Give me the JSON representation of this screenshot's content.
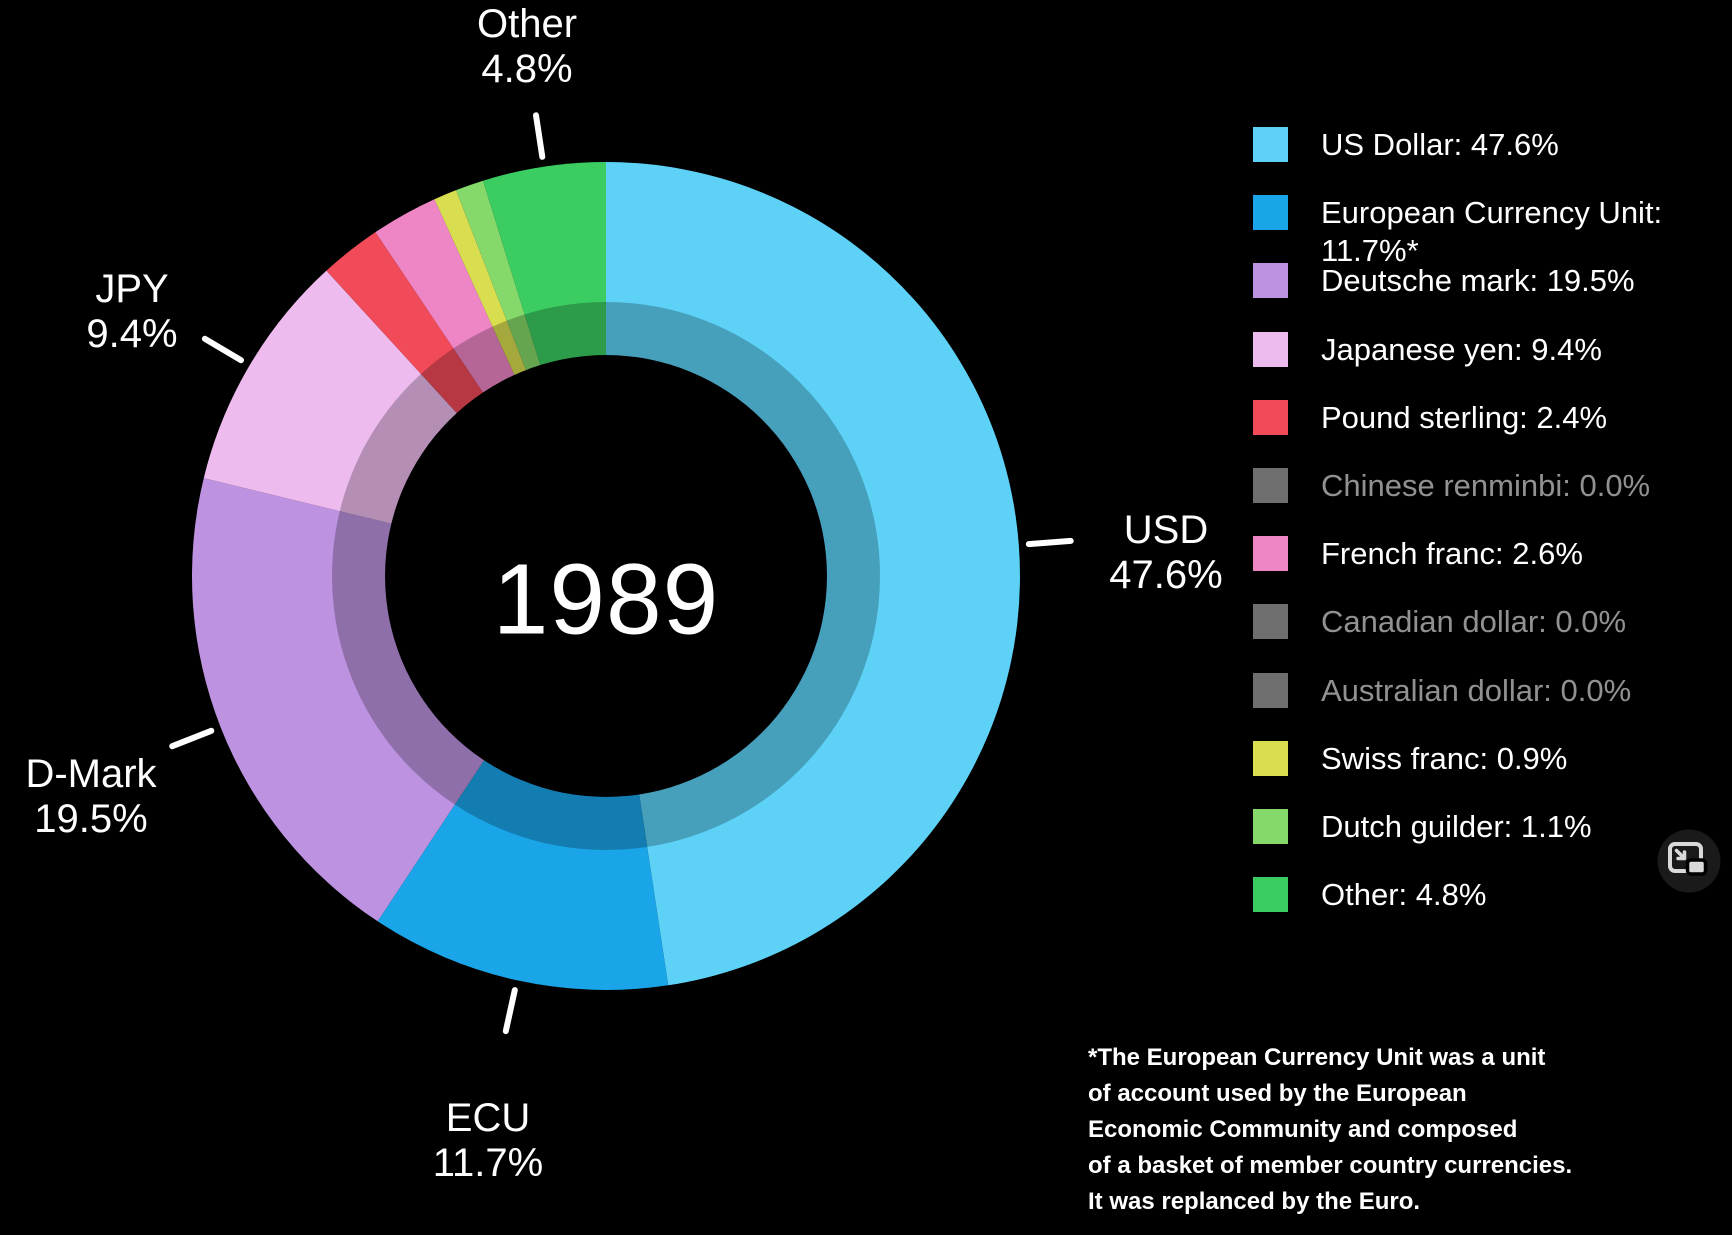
{
  "chart_data": {
    "type": "pie",
    "title": "Currency composition 1989",
    "center_label": "1989",
    "donut": true,
    "start_angle_deg": 0,
    "direction": "clockwise",
    "legend_position": "right",
    "segments": [
      {
        "name": "US Dollar",
        "value": 47.6,
        "color": "#5dd2f6",
        "dimmed": false,
        "legend_lines": [
          "US Dollar: 47.6%"
        ],
        "callout": {
          "label": "USD",
          "pct": "47.6%"
        }
      },
      {
        "name": "European Currency Unit",
        "value": 11.7,
        "color": "#1aa5e9",
        "dimmed": false,
        "legend_lines": [
          "European Currency Unit:",
          "11.7%*"
        ],
        "callout": {
          "label": "ECU",
          "pct": "11.7%"
        }
      },
      {
        "name": "Deutsche mark",
        "value": 19.5,
        "color": "#bd92e0",
        "dimmed": false,
        "legend_lines": [
          "Deutsche mark: 19.5%"
        ],
        "callout": {
          "label": "D-Mark",
          "pct": "19.5%"
        }
      },
      {
        "name": "Japanese yen",
        "value": 9.4,
        "color": "#edbbee",
        "dimmed": false,
        "legend_lines": [
          "Japanese yen: 9.4%"
        ],
        "callout": {
          "label": "JPY",
          "pct": "9.4%"
        }
      },
      {
        "name": "Pound sterling",
        "value": 2.4,
        "color": "#f14a59",
        "dimmed": false,
        "legend_lines": [
          "Pound sterling: 2.4%"
        ]
      },
      {
        "name": "Chinese renminbi",
        "value": 0.0,
        "color": "#6f6f6f",
        "dimmed": true,
        "legend_lines": [
          "Chinese renminbi: 0.0%"
        ]
      },
      {
        "name": "French franc",
        "value": 2.6,
        "color": "#ee86c5",
        "dimmed": false,
        "legend_lines": [
          "French franc: 2.6%"
        ]
      },
      {
        "name": "Canadian dollar",
        "value": 0.0,
        "color": "#6f6f6f",
        "dimmed": true,
        "legend_lines": [
          "Canadian dollar: 0.0%"
        ]
      },
      {
        "name": "Australian dollar",
        "value": 0.0,
        "color": "#6f6f6f",
        "dimmed": true,
        "legend_lines": [
          "Australian dollar: 0.0%"
        ]
      },
      {
        "name": "Swiss franc",
        "value": 0.9,
        "color": "#d9dd50",
        "dimmed": false,
        "legend_lines": [
          "Swiss franc: 0.9%"
        ]
      },
      {
        "name": "Dutch guilder",
        "value": 1.1,
        "color": "#85d96a",
        "dimmed": false,
        "legend_lines": [
          "Dutch guilder: 1.1%"
        ]
      },
      {
        "name": "Other",
        "value": 4.8,
        "color": "#3bcd62",
        "dimmed": false,
        "legend_lines": [
          "Other: 4.8%"
        ],
        "callout": {
          "label": "Other",
          "pct": "4.8%"
        }
      }
    ]
  },
  "footnote": {
    "lines": [
      "*The European Currency Unit was a unit",
      "of account used by the European",
      "Economic Community and composed",
      "of a basket of member country currencies.",
      "It was replanced by the Euro."
    ]
  },
  "colors": {
    "background": "#000000",
    "text": "#ffffff",
    "dimmed_text": "#919191",
    "inner_ring_shade": "rgba(0,0,0,0.24)",
    "tick": "#ffffff"
  },
  "pip_button": {
    "icon": "picture-in-picture"
  }
}
